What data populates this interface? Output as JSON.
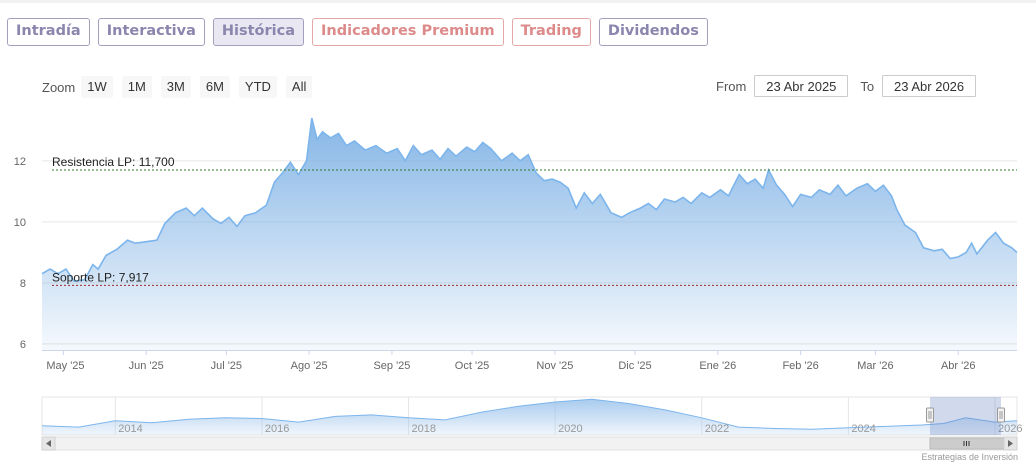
{
  "tabs": [
    {
      "label": "Intradía"
    },
    {
      "label": "Interactiva"
    },
    {
      "label": "Histórica"
    },
    {
      "label": "Indicadores Premium"
    },
    {
      "label": "Trading"
    },
    {
      "label": "Dividendos"
    }
  ],
  "zoom": {
    "label": "Zoom",
    "buttons": [
      "1W",
      "1M",
      "3M",
      "6M",
      "YTD",
      "All"
    ]
  },
  "range": {
    "from_label": "From",
    "from_value": "23 Abr 2025",
    "to_label": "To",
    "to_value": "23 Abr 2026"
  },
  "credit": "Estrategias de Inversión",
  "colors": {
    "accent": "#7fb2e5",
    "line": "#7cb5ec",
    "resistance": "#2f7d2f",
    "support": "#a02b2b",
    "tab_border": "#a3a0bd",
    "tab_premium": "#dd8a8a"
  },
  "chart_data": {
    "type": "area",
    "title": "",
    "xlabel": "",
    "ylabel": "",
    "ylim": [
      5.8,
      13.6
    ],
    "y_ticks": [
      6,
      8,
      10,
      12
    ],
    "x_range": [
      "2025-04-23",
      "2026-04-23"
    ],
    "x_ticks": [
      {
        "date": "2025-05-01",
        "label": "May '25"
      },
      {
        "date": "2025-06-01",
        "label": "Jun '25"
      },
      {
        "date": "2025-07-01",
        "label": "Jul '25"
      },
      {
        "date": "2025-08-01",
        "label": "Ago '25"
      },
      {
        "date": "2025-09-01",
        "label": "Sep '25"
      },
      {
        "date": "2025-10-01",
        "label": "Oct '25"
      },
      {
        "date": "2025-11-01",
        "label": "Nov '25"
      },
      {
        "date": "2025-12-01",
        "label": "Dic '25"
      },
      {
        "date": "2026-01-01",
        "label": "Ene '26"
      },
      {
        "date": "2026-02-01",
        "label": "Feb '26"
      },
      {
        "date": "2026-03-01",
        "label": "Mar '26"
      },
      {
        "date": "2026-04-01",
        "label": "Abr '26"
      }
    ],
    "series": [
      {
        "values": [
          [
            "2025-04-23",
            8.3
          ],
          [
            "2025-04-26",
            8.45
          ],
          [
            "2025-04-29",
            8.3
          ],
          [
            "2025-05-02",
            8.45
          ],
          [
            "2025-05-05",
            8.05
          ],
          [
            "2025-05-09",
            8.1
          ],
          [
            "2025-05-12",
            8.6
          ],
          [
            "2025-05-14",
            8.45
          ],
          [
            "2025-05-17",
            8.9
          ],
          [
            "2025-05-21",
            9.1
          ],
          [
            "2025-05-25",
            9.4
          ],
          [
            "2025-05-28",
            9.3
          ],
          [
            "2025-06-01",
            9.35
          ],
          [
            "2025-06-05",
            9.4
          ],
          [
            "2025-06-08",
            9.95
          ],
          [
            "2025-06-12",
            10.3
          ],
          [
            "2025-06-16",
            10.45
          ],
          [
            "2025-06-19",
            10.2
          ],
          [
            "2025-06-22",
            10.45
          ],
          [
            "2025-06-26",
            10.1
          ],
          [
            "2025-06-29",
            9.95
          ],
          [
            "2025-07-02",
            10.15
          ],
          [
            "2025-07-05",
            9.85
          ],
          [
            "2025-07-08",
            10.2
          ],
          [
            "2025-07-12",
            10.3
          ],
          [
            "2025-07-16",
            10.55
          ],
          [
            "2025-07-19",
            11.3
          ],
          [
            "2025-07-22",
            11.6
          ],
          [
            "2025-07-25",
            11.95
          ],
          [
            "2025-07-28",
            11.55
          ],
          [
            "2025-07-31",
            12.0
          ],
          [
            "2025-08-02",
            13.4
          ],
          [
            "2025-08-04",
            12.7
          ],
          [
            "2025-08-06",
            12.95
          ],
          [
            "2025-08-09",
            12.75
          ],
          [
            "2025-08-12",
            12.9
          ],
          [
            "2025-08-15",
            12.5
          ],
          [
            "2025-08-18",
            12.65
          ],
          [
            "2025-08-22",
            12.35
          ],
          [
            "2025-08-26",
            12.5
          ],
          [
            "2025-08-30",
            12.25
          ],
          [
            "2025-09-03",
            12.4
          ],
          [
            "2025-09-06",
            12.0
          ],
          [
            "2025-09-09",
            12.5
          ],
          [
            "2025-09-12",
            12.2
          ],
          [
            "2025-09-16",
            12.35
          ],
          [
            "2025-09-19",
            12.05
          ],
          [
            "2025-09-22",
            12.4
          ],
          [
            "2025-09-25",
            12.15
          ],
          [
            "2025-09-29",
            12.45
          ],
          [
            "2025-10-02",
            12.3
          ],
          [
            "2025-10-05",
            12.6
          ],
          [
            "2025-10-08",
            12.4
          ],
          [
            "2025-10-12",
            12.0
          ],
          [
            "2025-10-16",
            12.25
          ],
          [
            "2025-10-19",
            12.0
          ],
          [
            "2025-10-22",
            12.2
          ],
          [
            "2025-10-25",
            11.6
          ],
          [
            "2025-10-28",
            11.35
          ],
          [
            "2025-10-31",
            11.4
          ],
          [
            "2025-11-03",
            11.3
          ],
          [
            "2025-11-06",
            11.1
          ],
          [
            "2025-11-09",
            10.45
          ],
          [
            "2025-11-12",
            10.95
          ],
          [
            "2025-11-15",
            10.6
          ],
          [
            "2025-11-18",
            10.9
          ],
          [
            "2025-11-22",
            10.3
          ],
          [
            "2025-11-26",
            10.15
          ],
          [
            "2025-11-29",
            10.3
          ],
          [
            "2025-12-03",
            10.45
          ],
          [
            "2025-12-06",
            10.6
          ],
          [
            "2025-12-09",
            10.4
          ],
          [
            "2025-12-12",
            10.75
          ],
          [
            "2025-12-16",
            10.65
          ],
          [
            "2025-12-19",
            10.8
          ],
          [
            "2025-12-22",
            10.6
          ],
          [
            "2025-12-26",
            10.95
          ],
          [
            "2025-12-29",
            10.8
          ],
          [
            "2026-01-02",
            11.05
          ],
          [
            "2026-01-05",
            10.85
          ],
          [
            "2026-01-09",
            11.55
          ],
          [
            "2026-01-12",
            11.25
          ],
          [
            "2026-01-15",
            11.4
          ],
          [
            "2026-01-18",
            11.1
          ],
          [
            "2026-01-20",
            11.7
          ],
          [
            "2026-01-23",
            11.2
          ],
          [
            "2026-01-26",
            10.9
          ],
          [
            "2026-01-29",
            10.5
          ],
          [
            "2026-02-01",
            10.9
          ],
          [
            "2026-02-05",
            10.8
          ],
          [
            "2026-02-08",
            11.05
          ],
          [
            "2026-02-12",
            10.9
          ],
          [
            "2026-02-15",
            11.2
          ],
          [
            "2026-02-18",
            10.85
          ],
          [
            "2026-02-22",
            11.1
          ],
          [
            "2026-02-26",
            11.25
          ],
          [
            "2026-03-01",
            11.0
          ],
          [
            "2026-03-04",
            11.2
          ],
          [
            "2026-03-07",
            10.85
          ],
          [
            "2026-03-09",
            10.4
          ],
          [
            "2026-03-12",
            9.9
          ],
          [
            "2026-03-16",
            9.65
          ],
          [
            "2026-03-19",
            9.15
          ],
          [
            "2026-03-23",
            9.05
          ],
          [
            "2026-03-26",
            9.1
          ],
          [
            "2026-03-29",
            8.8
          ],
          [
            "2026-04-01",
            8.85
          ],
          [
            "2026-04-04",
            9.0
          ],
          [
            "2026-04-06",
            9.3
          ],
          [
            "2026-04-08",
            8.95
          ],
          [
            "2026-04-12",
            9.4
          ],
          [
            "2026-04-15",
            9.65
          ],
          [
            "2026-04-18",
            9.3
          ],
          [
            "2026-04-21",
            9.15
          ],
          [
            "2026-04-23",
            9.0
          ]
        ]
      }
    ],
    "resistance": {
      "label": "Resistencia LP: 11,700",
      "value": 11.7
    },
    "support": {
      "label": "Soporte LP: 7,917",
      "value": 7.917
    },
    "navigator": {
      "x_labels": [
        "2014",
        "2016",
        "2018",
        "2020",
        "2022",
        "2024",
        "2026"
      ],
      "values": [
        [
          "2013",
          6.5
        ],
        [
          "2013.5",
          6.3
        ],
        [
          "2014",
          7.2
        ],
        [
          "2014.5",
          6.9
        ],
        [
          "2015",
          7.4
        ],
        [
          "2015.5",
          7.6
        ],
        [
          "2016",
          7.5
        ],
        [
          "2016.5",
          7.0
        ],
        [
          "2017",
          7.8
        ],
        [
          "2017.5",
          8.0
        ],
        [
          "2018",
          7.6
        ],
        [
          "2018.5",
          7.3
        ],
        [
          "2019",
          8.4
        ],
        [
          "2019.5",
          9.2
        ],
        [
          "2020",
          9.8
        ],
        [
          "2020.5",
          10.2
        ],
        [
          "2021",
          9.6
        ],
        [
          "2021.5",
          8.7
        ],
        [
          "2022",
          7.6
        ],
        [
          "2022.5",
          6.3
        ],
        [
          "2023",
          6.1
        ],
        [
          "2023.5",
          6.0
        ],
        [
          "2024",
          6.2
        ],
        [
          "2024.5",
          6.4
        ],
        [
          "2025",
          6.6
        ],
        [
          "2025.3",
          6.8
        ],
        [
          "2025.6",
          7.6
        ],
        [
          "2026",
          7.0
        ],
        [
          "2026.3",
          7.2
        ]
      ]
    }
  }
}
